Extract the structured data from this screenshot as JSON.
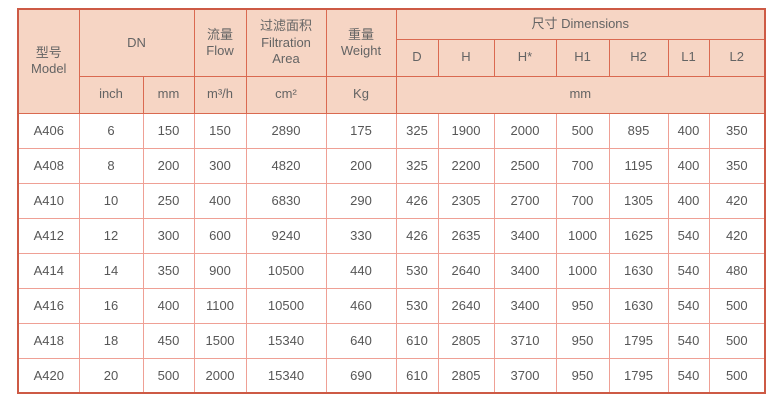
{
  "table": {
    "header": {
      "model": "型号\nModel",
      "dn": "DN",
      "flow": "流量\nFlow",
      "filtration_area": "过滤面积\nFiltration\nArea",
      "weight": "重量\nWeight",
      "dimensions": "尺寸 Dimensions",
      "dimension_columns": [
        "D",
        "H",
        "H*",
        "H1",
        "H2",
        "L1",
        "L2"
      ],
      "units": {
        "dn_inch": "inch",
        "dn_mm": "mm",
        "flow": "m³/h",
        "filtration_area": "cm²",
        "weight": "Kg",
        "dimensions": "mm"
      }
    },
    "column_keys": [
      "model",
      "dn-inch",
      "dn-mm",
      "flow",
      "filtration-area",
      "weight",
      "d",
      "h",
      "h-star",
      "h1",
      "h2",
      "l1",
      "l2"
    ],
    "rows": [
      [
        "A406",
        "6",
        "150",
        "150",
        "2890",
        "175",
        "325",
        "1900",
        "2000",
        "500",
        "895",
        "400",
        "350"
      ],
      [
        "A408",
        "8",
        "200",
        "300",
        "4820",
        "200",
        "325",
        "2200",
        "2500",
        "700",
        "1195",
        "400",
        "350"
      ],
      [
        "A410",
        "10",
        "250",
        "400",
        "6830",
        "290",
        "426",
        "2305",
        "2700",
        "700",
        "1305",
        "400",
        "420"
      ],
      [
        "A412",
        "12",
        "300",
        "600",
        "9240",
        "330",
        "426",
        "2635",
        "3400",
        "1000",
        "1625",
        "540",
        "420"
      ],
      [
        "A414",
        "14",
        "350",
        "900",
        "10500",
        "440",
        "530",
        "2640",
        "3400",
        "1000",
        "1630",
        "540",
        "480"
      ],
      [
        "A416",
        "16",
        "400",
        "1100",
        "10500",
        "460",
        "530",
        "2640",
        "3400",
        "950",
        "1630",
        "540",
        "500"
      ],
      [
        "A418",
        "18",
        "450",
        "1500",
        "15340",
        "640",
        "610",
        "2805",
        "3710",
        "950",
        "1795",
        "540",
        "500"
      ],
      [
        "A420",
        "20",
        "500",
        "2000",
        "15340",
        "690",
        "610",
        "2805",
        "3700",
        "950",
        "1795",
        "540",
        "500"
      ]
    ],
    "colors": {
      "header_bg": "#f6d5c4",
      "header_border": "#da6950",
      "grid_border": "#efa095",
      "outer_border": "#cd5a45",
      "header_text": "#646464",
      "cell_text": "#575757"
    }
  }
}
